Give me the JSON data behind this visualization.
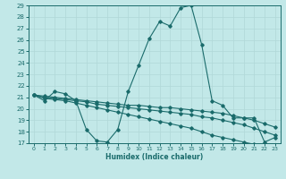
{
  "xlabel": "Humidex (Indice chaleur)",
  "ylabel": "",
  "xlim": [
    -0.5,
    23.5
  ],
  "ylim": [
    17,
    29
  ],
  "yticks": [
    17,
    18,
    19,
    20,
    21,
    22,
    23,
    24,
    25,
    26,
    27,
    28,
    29
  ],
  "xticks": [
    0,
    1,
    2,
    3,
    4,
    5,
    6,
    7,
    8,
    9,
    10,
    11,
    12,
    13,
    14,
    15,
    16,
    17,
    18,
    19,
    20,
    21,
    22,
    23
  ],
  "bg_color": "#c2e8e8",
  "line_color": "#1a6b6b",
  "grid_color": "#b0d8d8",
  "lines": [
    {
      "x": [
        0,
        1,
        2,
        3,
        4,
        5,
        6,
        7,
        8,
        9,
        10,
        11,
        12,
        13,
        14,
        15,
        16,
        17,
        18,
        19,
        20,
        21,
        22,
        23
      ],
      "y": [
        21.2,
        20.7,
        21.5,
        21.3,
        20.7,
        18.2,
        17.2,
        17.1,
        18.2,
        21.5,
        23.8,
        26.1,
        27.6,
        27.2,
        28.8,
        29.0,
        25.6,
        20.7,
        20.3,
        19.2,
        19.2,
        19.2,
        17.1,
        17.5
      ]
    },
    {
      "x": [
        0,
        1,
        2,
        3,
        4,
        5,
        6,
        7,
        8,
        9,
        10,
        11,
        12,
        13,
        14,
        15,
        16,
        17,
        18,
        19,
        20,
        21,
        22,
        23
      ],
      "y": [
        21.2,
        21.1,
        21.0,
        20.9,
        20.8,
        20.7,
        20.6,
        20.5,
        20.4,
        20.3,
        20.3,
        20.2,
        20.1,
        20.1,
        20.0,
        19.9,
        19.8,
        19.7,
        19.6,
        19.4,
        19.2,
        19.0,
        18.7,
        18.4
      ]
    },
    {
      "x": [
        0,
        1,
        2,
        3,
        4,
        5,
        6,
        7,
        8,
        9,
        10,
        11,
        12,
        13,
        14,
        15,
        16,
        17,
        18,
        19,
        20,
        21,
        22,
        23
      ],
      "y": [
        21.2,
        21.0,
        20.9,
        20.8,
        20.7,
        20.6,
        20.4,
        20.3,
        20.2,
        20.1,
        20.0,
        19.9,
        19.8,
        19.7,
        19.6,
        19.5,
        19.3,
        19.2,
        19.0,
        18.8,
        18.6,
        18.3,
        18.0,
        17.7
      ]
    },
    {
      "x": [
        0,
        1,
        2,
        3,
        4,
        5,
        6,
        7,
        8,
        9,
        10,
        11,
        12,
        13,
        14,
        15,
        16,
        17,
        18,
        19,
        20,
        21,
        22,
        23
      ],
      "y": [
        21.2,
        20.9,
        20.8,
        20.7,
        20.5,
        20.3,
        20.1,
        19.9,
        19.7,
        19.5,
        19.3,
        19.1,
        18.9,
        18.7,
        18.5,
        18.3,
        18.0,
        17.7,
        17.5,
        17.3,
        17.1,
        16.9,
        16.8,
        16.7
      ]
    }
  ]
}
